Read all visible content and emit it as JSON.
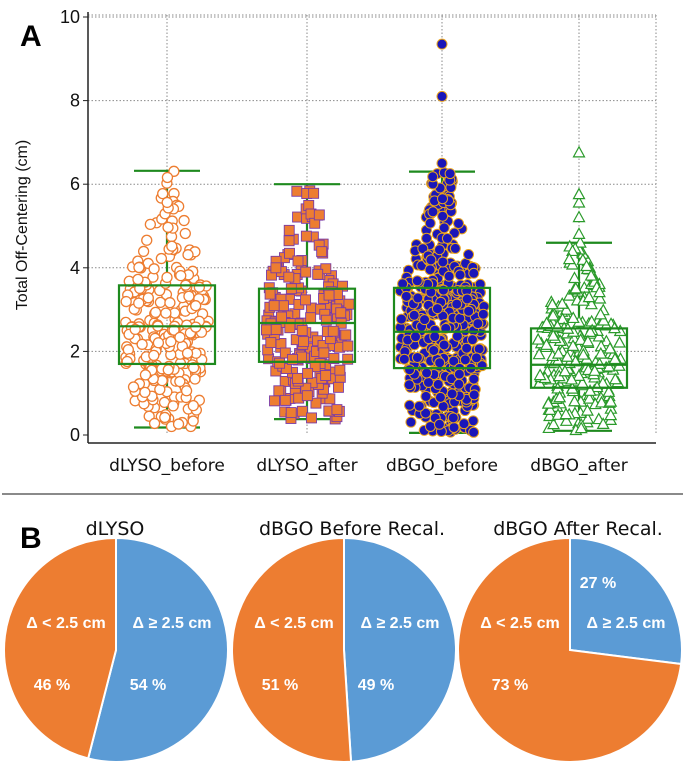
{
  "colors": {
    "orange": "#ED7D31",
    "blue": "#5B9BD5",
    "box_green": "#1E8A1E",
    "navy": "#1A16B8",
    "grid": "#8A8A8A"
  },
  "chart_data": [
    {
      "type": "box",
      "panel_label": "A",
      "title": "",
      "xlabel": "",
      "ylabel": "Total Off-Centering (cm)",
      "ylim": [
        0,
        10
      ],
      "yticks": [
        0,
        2,
        4,
        6,
        8,
        10
      ],
      "grid": true,
      "categories": [
        "dLYSO_before",
        "dLYSO_after",
        "dBGO_before",
        "dBGO_after"
      ],
      "boxes": [
        {
          "name": "dLYSO_before",
          "whisker_low": 0.18,
          "q1": 1.7,
          "median": 2.6,
          "q3": 3.58,
          "whisker_high": 6.32,
          "points": 260,
          "marker": "open-circle"
        },
        {
          "name": "dLYSO_after",
          "whisker_low": 0.38,
          "q1": 1.75,
          "median": 2.68,
          "q3": 3.5,
          "whisker_high": 6.0,
          "points": 220,
          "marker": "filled-square"
        },
        {
          "name": "dBGO_before",
          "whisker_low": 0.05,
          "q1": 1.6,
          "median": 2.47,
          "q3": 3.52,
          "whisker_high": 6.3,
          "outliers": [
            6.5,
            8.1,
            9.35
          ],
          "points": 520,
          "marker": "filled-circle"
        },
        {
          "name": "dBGO_after",
          "whisker_low": 0.1,
          "q1": 1.13,
          "median": 1.68,
          "q3": 2.55,
          "whisker_high": 4.6,
          "outliers": [
            4.8,
            5.2,
            5.55,
            5.75,
            6.75
          ],
          "points": 240,
          "marker": "open-triangle"
        }
      ]
    },
    {
      "type": "pie",
      "panel_label": "B",
      "title": "dLYSO",
      "labels": [
        "Δ < 2.5 cm",
        "Δ ≥ 2.5 cm"
      ],
      "values": [
        46,
        54
      ],
      "pct_labels": [
        "46 %",
        "54 %"
      ]
    },
    {
      "type": "pie",
      "title": "dBGO Before Recal.",
      "labels": [
        "Δ < 2.5 cm",
        "Δ ≥ 2.5 cm"
      ],
      "values": [
        51,
        49
      ],
      "pct_labels": [
        "51 %",
        "49 %"
      ]
    },
    {
      "type": "pie",
      "title": "dBGO After Recal.",
      "labels": [
        "Δ < 2.5 cm",
        "Δ ≥ 2.5 cm"
      ],
      "values": [
        73,
        27
      ],
      "pct_labels": [
        "73 %",
        "27 %"
      ]
    }
  ]
}
